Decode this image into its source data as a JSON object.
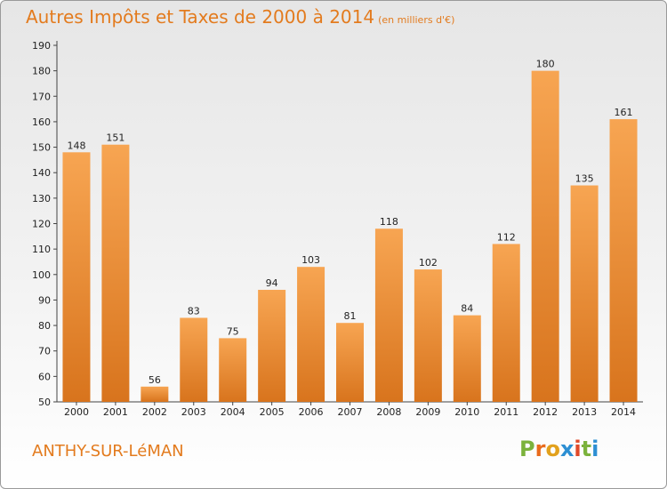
{
  "header": {
    "title": "Autres Impôts et Taxes de 2000 à 2014",
    "subtitle": "(en milliers d'€)"
  },
  "footer": {
    "commune": "ANTHY-SUR-LéMAN",
    "logo": [
      "P",
      "r",
      "o",
      "x",
      "i",
      "t",
      "i"
    ]
  },
  "colors": {
    "title": "#e37b1e",
    "bar_light": "#f7a552",
    "bar_dark": "#d8741d",
    "logo": [
      "#7bb23c",
      "#e96b1c",
      "#e2a11c",
      "#2d8fd3",
      "#e04a2a",
      "#7bb23c",
      "#2d8fd3"
    ]
  },
  "chart_data": {
    "type": "bar",
    "title": "Autres Impôts et Taxes de 2000 à 2014",
    "ylabel": "",
    "xlabel": "",
    "categories": [
      "2000",
      "2001",
      "2002",
      "2003",
      "2004",
      "2005",
      "2006",
      "2007",
      "2008",
      "2009",
      "2010",
      "2011",
      "2012",
      "2013",
      "2014"
    ],
    "values": [
      148,
      151,
      56,
      83,
      75,
      94,
      103,
      81,
      118,
      102,
      84,
      112,
      180,
      135,
      161
    ],
    "ylim": [
      50,
      190
    ],
    "yticks": [
      50,
      60,
      70,
      80,
      90,
      100,
      110,
      120,
      130,
      140,
      150,
      160,
      170,
      180,
      190
    ],
    "grid": false
  }
}
